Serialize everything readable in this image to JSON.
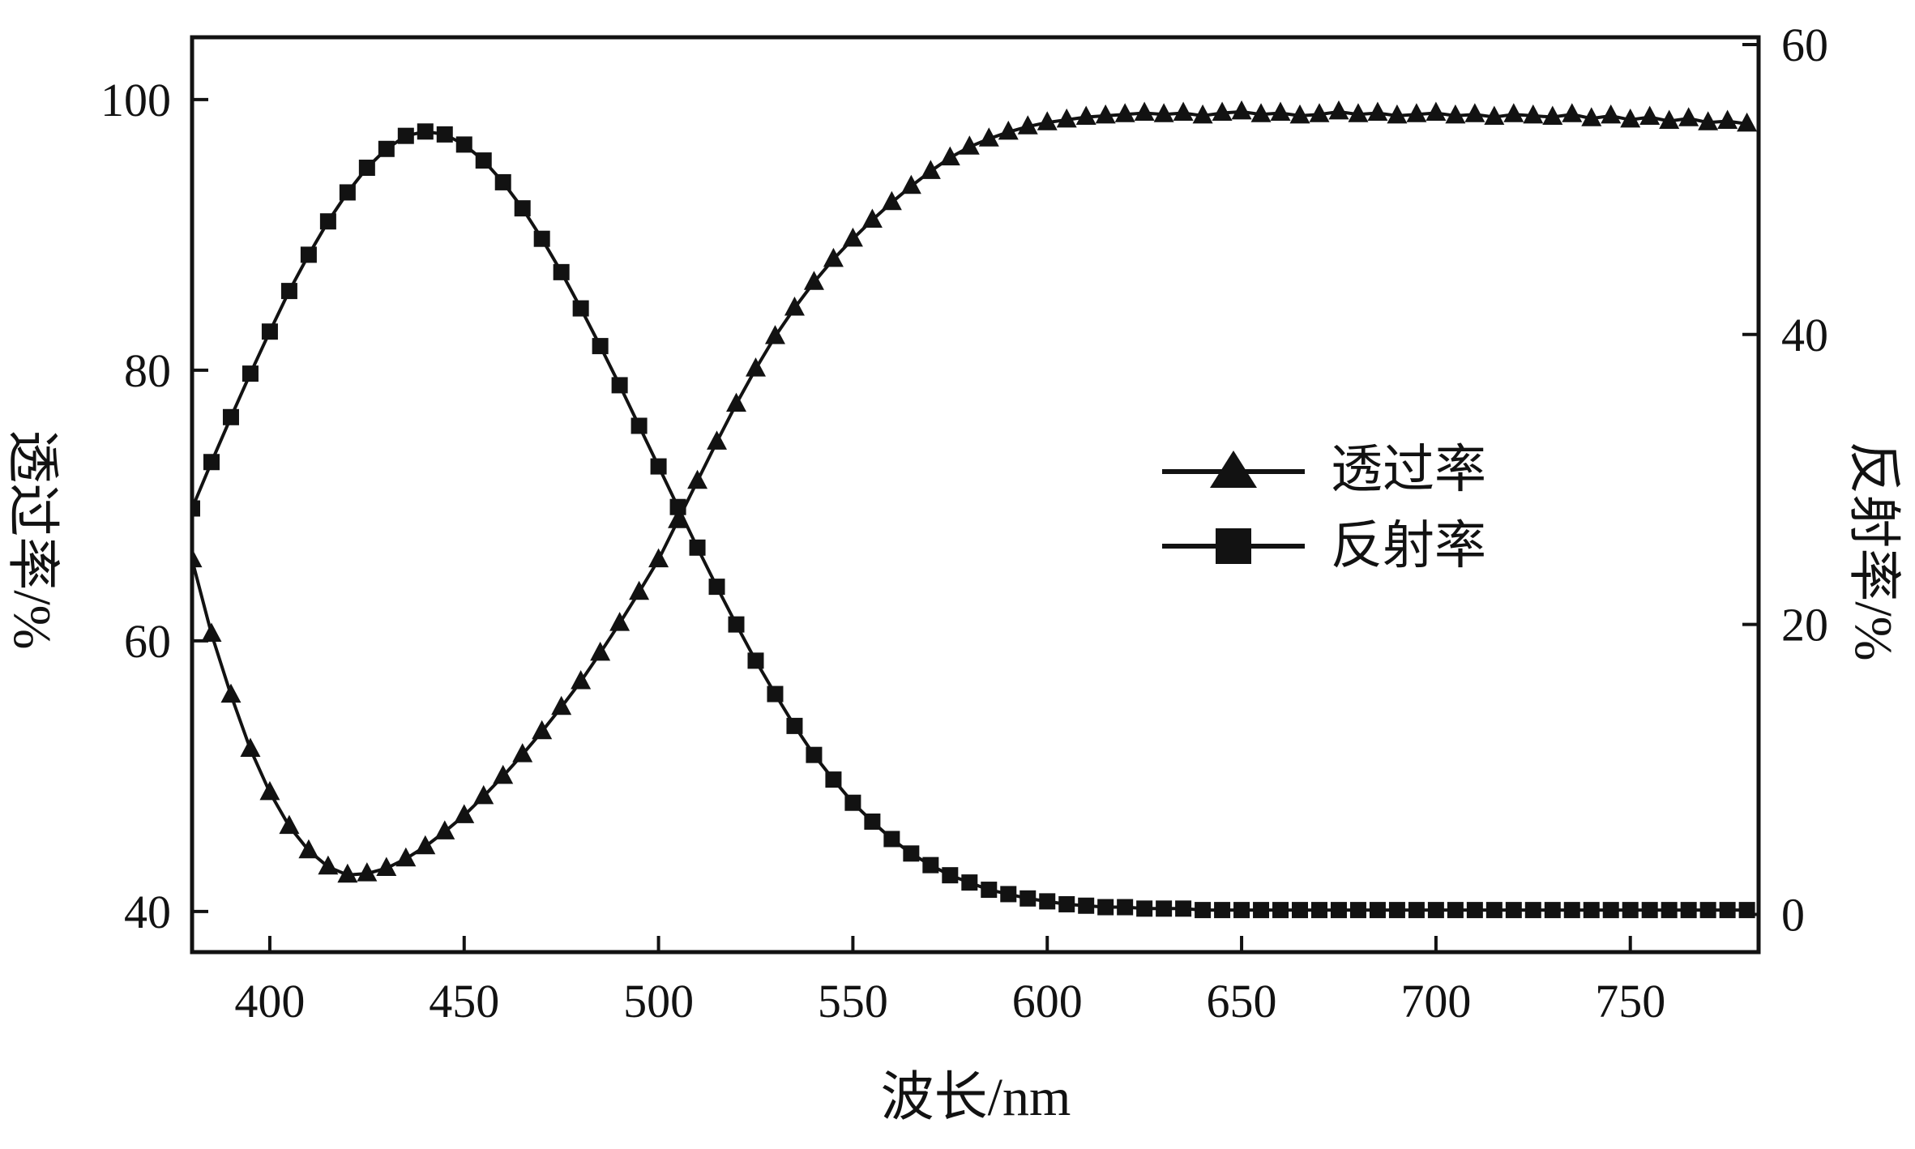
{
  "colors": {
    "line": "#121212",
    "background": "#ffffff"
  },
  "chart_data": {
    "type": "line",
    "title": "",
    "xlabel": "波长/nm",
    "ylabel_left": "透过率/%",
    "ylabel_right": "反射率/%",
    "x_range": [
      380,
      783
    ],
    "y_left_range": [
      37,
      104.6
    ],
    "y_right_range": [
      -2.6,
      60.5
    ],
    "x_ticks": [
      400,
      450,
      500,
      550,
      600,
      650,
      700,
      750
    ],
    "y_left_ticks": [
      40,
      60,
      80,
      100
    ],
    "y_right_ticks": [
      0,
      20,
      40,
      60
    ],
    "grid": false,
    "legend_position": "center-right",
    "series": [
      {
        "name": "透过率",
        "axis": "left",
        "marker": "triangle",
        "x": [
          380,
          385,
          390,
          395,
          400,
          405,
          410,
          415,
          420,
          425,
          430,
          435,
          440,
          445,
          450,
          455,
          460,
          465,
          470,
          475,
          480,
          485,
          490,
          495,
          500,
          505,
          510,
          515,
          520,
          525,
          530,
          535,
          540,
          545,
          550,
          555,
          560,
          565,
          570,
          575,
          580,
          585,
          590,
          595,
          600,
          605,
          610,
          615,
          620,
          625,
          630,
          635,
          640,
          645,
          650,
          655,
          660,
          665,
          670,
          675,
          680,
          685,
          690,
          695,
          700,
          705,
          710,
          715,
          720,
          725,
          730,
          735,
          740,
          745,
          750,
          755,
          760,
          765,
          770,
          775,
          780
        ],
        "y": [
          66.0,
          60.5,
          56.0,
          52.0,
          48.8,
          46.3,
          44.5,
          43.3,
          42.7,
          42.8,
          43.2,
          43.9,
          44.8,
          45.9,
          47.1,
          48.5,
          50.0,
          51.6,
          53.3,
          55.1,
          57.0,
          59.1,
          61.3,
          63.6,
          66.0,
          68.9,
          71.8,
          74.7,
          77.5,
          80.1,
          82.5,
          84.6,
          86.5,
          88.2,
          89.7,
          91.1,
          92.4,
          93.6,
          94.7,
          95.7,
          96.5,
          97.1,
          97.6,
          98.0,
          98.3,
          98.5,
          98.7,
          98.8,
          98.9,
          99.0,
          98.9,
          99.0,
          98.8,
          99.0,
          99.1,
          98.9,
          99.0,
          98.8,
          98.9,
          99.1,
          98.9,
          99.0,
          98.8,
          98.9,
          99.0,
          98.8,
          98.9,
          98.7,
          98.9,
          98.8,
          98.7,
          98.9,
          98.6,
          98.8,
          98.5,
          98.7,
          98.4,
          98.6,
          98.3,
          98.4,
          98.2
        ]
      },
      {
        "name": "反射率",
        "axis": "right",
        "marker": "square",
        "x": [
          380,
          385,
          390,
          395,
          400,
          405,
          410,
          415,
          420,
          425,
          430,
          435,
          440,
          445,
          450,
          455,
          460,
          465,
          470,
          475,
          480,
          485,
          490,
          495,
          500,
          505,
          510,
          515,
          520,
          525,
          530,
          535,
          540,
          545,
          550,
          555,
          560,
          565,
          570,
          575,
          580,
          585,
          590,
          595,
          600,
          605,
          610,
          615,
          620,
          625,
          630,
          635,
          640,
          645,
          650,
          655,
          660,
          665,
          670,
          675,
          680,
          685,
          690,
          695,
          700,
          705,
          710,
          715,
          720,
          725,
          730,
          735,
          740,
          745,
          750,
          755,
          760,
          765,
          770,
          775,
          780
        ],
        "y": [
          28.0,
          31.2,
          34.3,
          37.3,
          40.2,
          43.0,
          45.5,
          47.8,
          49.8,
          51.5,
          52.8,
          53.7,
          54.0,
          53.8,
          53.1,
          52.0,
          50.5,
          48.7,
          46.6,
          44.3,
          41.8,
          39.2,
          36.5,
          33.7,
          30.9,
          28.1,
          25.3,
          22.6,
          20.0,
          17.5,
          15.2,
          13.0,
          11.0,
          9.3,
          7.7,
          6.4,
          5.2,
          4.2,
          3.4,
          2.7,
          2.2,
          1.7,
          1.4,
          1.1,
          0.9,
          0.7,
          0.6,
          0.5,
          0.5,
          0.4,
          0.4,
          0.4,
          0.3,
          0.3,
          0.3,
          0.3,
          0.3,
          0.3,
          0.3,
          0.3,
          0.3,
          0.3,
          0.3,
          0.3,
          0.3,
          0.3,
          0.3,
          0.3,
          0.3,
          0.3,
          0.3,
          0.3,
          0.3,
          0.3,
          0.3,
          0.3,
          0.3,
          0.3,
          0.3,
          0.3,
          0.3
        ]
      }
    ]
  }
}
